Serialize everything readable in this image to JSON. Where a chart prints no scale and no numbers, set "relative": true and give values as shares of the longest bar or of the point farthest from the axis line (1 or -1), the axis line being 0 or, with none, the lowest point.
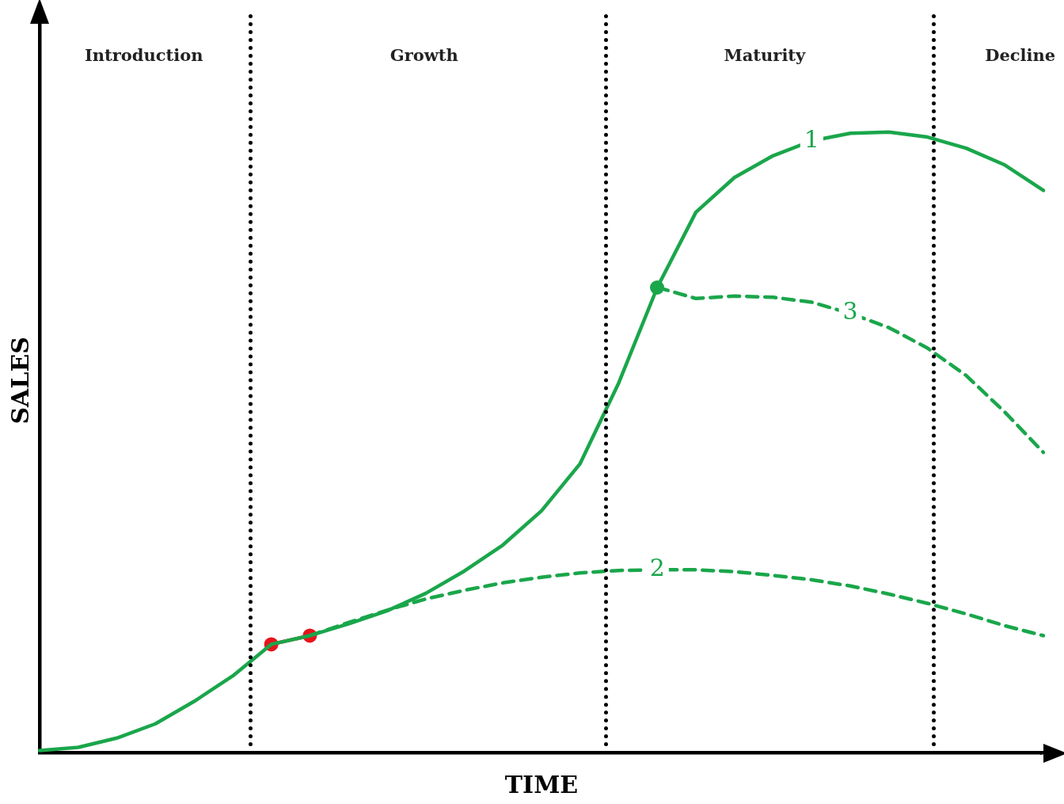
{
  "chart_data": {
    "type": "line",
    "relative": true,
    "xlabel": "TIME",
    "ylabel": "SALES",
    "grid": false,
    "legend": false,
    "categories": [
      null,
      null,
      null,
      null,
      null,
      null,
      null,
      null,
      null,
      null,
      null,
      null,
      null,
      null,
      null,
      null,
      null,
      null,
      null,
      null,
      null,
      null,
      null,
      null,
      null,
      null,
      null
    ],
    "annotations": [
      "Introduction",
      "Growth",
      "Maturity",
      "Decline"
    ],
    "series": [
      {
        "name": "1",
        "color": "#1aa64b",
        "line_style": "solid",
        "values": [
          0.004,
          0.009,
          0.024,
          0.047,
          0.083,
          0.124,
          0.175,
          0.189,
          0.208,
          0.229,
          0.257,
          0.293,
          0.335,
          0.39,
          0.466,
          0.596,
          0.75,
          0.871,
          0.927,
          0.962,
          0.986,
          0.998,
          1.0,
          0.992,
          0.974,
          0.947,
          0.906
        ]
      },
      {
        "name": "2",
        "color": "#1aa64b",
        "line_style": "dashed",
        "values": [
          null,
          null,
          null,
          null,
          null,
          null,
          null,
          0.189,
          0.21,
          0.23,
          0.248,
          0.262,
          0.274,
          0.283,
          0.29,
          0.294,
          0.295,
          0.295,
          0.292,
          0.286,
          0.279,
          0.269,
          0.256,
          0.241,
          0.224,
          0.205,
          0.189
        ]
      },
      {
        "name": "3",
        "color": "#1aa64b",
        "line_style": "dashed",
        "values": [
          null,
          null,
          null,
          null,
          null,
          null,
          null,
          null,
          null,
          null,
          null,
          null,
          null,
          null,
          null,
          null,
          0.75,
          0.732,
          0.736,
          0.734,
          0.726,
          0.708,
          0.685,
          0.652,
          0.608,
          0.549,
          0.484
        ]
      },
      {
        "color": "#e8141c",
        "marker": "circle",
        "line_style": "solid",
        "values": [
          null,
          null,
          null,
          null,
          null,
          null,
          0.175,
          0.189,
          null,
          null,
          null,
          null,
          null,
          null,
          null,
          null,
          null,
          null,
          null,
          null,
          null,
          null,
          null,
          null,
          null,
          null,
          null
        ]
      }
    ]
  }
}
